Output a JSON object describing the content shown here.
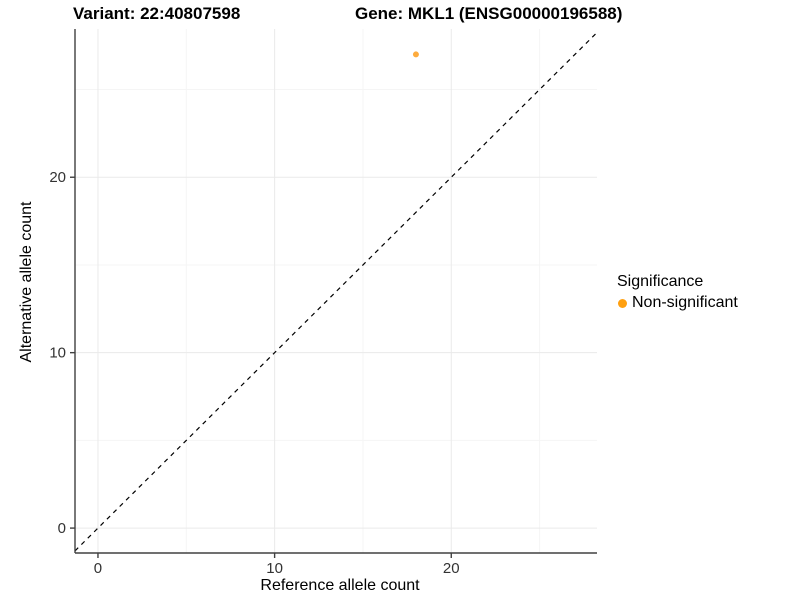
{
  "chart_data": {
    "type": "scatter",
    "title_left": "Variant: 22:40807598",
    "title_right": "Gene: MKL1 (ENSG00000196588)",
    "xlabel": "Reference allele count",
    "ylabel": "Alternative allele count",
    "xlim": [
      -1.3,
      28.25
    ],
    "ylim": [
      -1.42,
      28.45
    ],
    "x_ticks": [
      0,
      10,
      20
    ],
    "y_ticks": [
      0,
      10,
      20
    ],
    "x_minor_ticks": [
      5,
      15,
      25
    ],
    "y_minor_ticks": [
      5,
      15,
      25
    ],
    "grid": "on",
    "points": [
      {
        "x": 18,
        "y": 27,
        "series": "Non-significant"
      }
    ],
    "reference_line": {
      "slope": 1,
      "intercept": 0,
      "style": "dashed"
    },
    "legend": {
      "position": "right",
      "title": "Significance",
      "entries": [
        {
          "label": "Non-significant",
          "color": "#FFA010"
        }
      ]
    },
    "colors": {
      "point": "#FDAB3D",
      "legend_dot": "#FFA010",
      "grid_major": "#EAEAEA",
      "grid_minor": "#F5F5F5",
      "axis_line": "#404040",
      "tick_text": "#333333",
      "dashed_line": "#000000",
      "background": "#FFFFFF"
    }
  }
}
